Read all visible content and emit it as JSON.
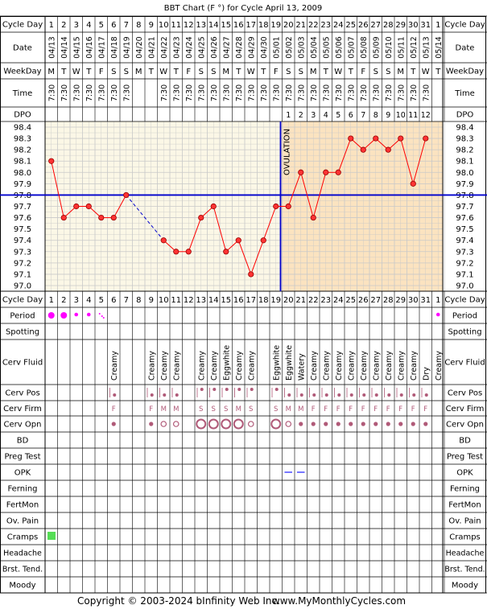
{
  "chart_data": {
    "type": "line",
    "title": "BBT Chart (F °) for Cycle April 13, 2009",
    "cycle_days": [
      1,
      2,
      3,
      4,
      5,
      6,
      7,
      8,
      9,
      10,
      11,
      12,
      13,
      14,
      15,
      16,
      17,
      18,
      19,
      20,
      21,
      22,
      23,
      24,
      25,
      26,
      27,
      28,
      29,
      30,
      31,
      1
    ],
    "dates": [
      "04/13",
      "04/14",
      "04/15",
      "04/16",
      "04/17",
      "04/18",
      "04/19",
      "04/20",
      "04/21",
      "04/22",
      "04/23",
      "04/24",
      "04/25",
      "04/26",
      "04/27",
      "04/28",
      "04/29",
      "04/30",
      "05/01",
      "05/02",
      "05/03",
      "05/04",
      "05/05",
      "05/06",
      "05/07",
      "05/08",
      "05/09",
      "05/10",
      "05/11",
      "05/12",
      "05/13",
      "05/14"
    ],
    "weekdays": [
      "M",
      "T",
      "W",
      "T",
      "F",
      "S",
      "S",
      "M",
      "T",
      "W",
      "T",
      "F",
      "S",
      "S",
      "M",
      "T",
      "W",
      "T",
      "F",
      "S",
      "S",
      "M",
      "T",
      "W",
      "T",
      "F",
      "S",
      "S",
      "M",
      "T",
      "W",
      "T"
    ],
    "times": [
      "7:30",
      "7:30",
      "7:30",
      "7:30",
      "7:30",
      "7:30",
      "7:30",
      "",
      "",
      "7:30",
      "7:30",
      "7:30",
      "7:30",
      "7:30",
      "7:30",
      "7:30",
      "7:30",
      "7:30",
      "7:30",
      "7:30",
      "7:30",
      "7:30",
      "7:30",
      "7:30",
      "7:30",
      "7:30",
      "7:30",
      "7:30",
      "7:30",
      "7:30",
      "7:30",
      ""
    ],
    "dpo": [
      "",
      "",
      "",
      "",
      "",
      "",
      "",
      "",
      "",
      "",
      "",
      "",
      "",
      "",
      "",
      "",
      "",
      "",
      "",
      "1",
      "2",
      "3",
      "4",
      "5",
      "6",
      "7",
      "8",
      "9",
      "10",
      "11",
      "12",
      ""
    ],
    "temperatures": [
      98.1,
      97.6,
      97.7,
      97.7,
      97.6,
      97.6,
      97.8,
      null,
      null,
      97.4,
      97.3,
      97.3,
      97.6,
      97.7,
      97.3,
      97.4,
      97.1,
      97.4,
      97.7,
      97.7,
      98.0,
      97.6,
      98.0,
      98.0,
      98.3,
      98.2,
      98.3,
      98.2,
      98.3,
      97.9,
      98.3,
      null
    ],
    "y_ticks": [
      "98.4",
      "98.3",
      "98.2",
      "98.1",
      "98.0",
      "97.9",
      "97.8",
      "97.7",
      "97.6",
      "97.5",
      "97.4",
      "97.3",
      "97.2",
      "97.1",
      "97.0"
    ],
    "ylim": [
      97.0,
      98.4
    ],
    "coverline": 97.8,
    "ovulation_day": 19,
    "ovulation_label": "OVULATION",
    "labels": {
      "cycle_day": "Cycle Day",
      "date": "Date",
      "weekday": "WeekDay",
      "time": "Time",
      "dpo": "DPO",
      "period": "Period",
      "spotting": "Spotting",
      "cerv_fluid": "Cerv Fluid",
      "cerv_pos": "Cerv Pos",
      "cerv_firm": "Cerv Firm",
      "cerv_opn": "Cerv Opn",
      "bd": "BD",
      "preg_test": "Preg Test",
      "opk": "OPK",
      "ferning": "Ferning",
      "fertmon": "FertMon",
      "ov_pain": "Ov. Pain",
      "cramps": "Cramps",
      "headache": "Headache",
      "brst_tend": "Brst. Tend.",
      "moody": "Moody"
    },
    "period": [
      "big",
      "big",
      "small",
      "small",
      "dots",
      "",
      "",
      "",
      "",
      "",
      "",
      "",
      "",
      "",
      "",
      "",
      "",
      "",
      "",
      "",
      "",
      "",
      "",
      "",
      "",
      "",
      "",
      "",
      "",
      "",
      "",
      "small"
    ],
    "cerv_fluid": [
      "",
      "",
      "",
      "",
      "",
      "Creamy",
      "",
      "",
      "Creamy",
      "Creamy",
      "Creamy",
      "",
      "Creamy",
      "Creamy",
      "Eggwhite",
      "Creamy",
      "Creamy",
      "",
      "Eggwhite",
      "Eggwhite",
      "Watery",
      "Creamy",
      "Creamy",
      "Creamy",
      "Creamy",
      "Creamy",
      "Creamy",
      "Creamy",
      "Creamy",
      "Creamy",
      "Dry",
      "Creamy"
    ],
    "cerv_pos": [
      "",
      "",
      "",
      "",
      "",
      "low",
      "",
      "",
      "low",
      "low",
      "low",
      "",
      "high",
      "high",
      "high",
      "high",
      "high",
      "",
      "high",
      "low",
      "low",
      "low",
      "low",
      "low",
      "low",
      "low",
      "low",
      "low",
      "low",
      "low",
      "low",
      ""
    ],
    "cerv_firm": [
      "",
      "",
      "",
      "",
      "",
      "F",
      "",
      "",
      "F",
      "M",
      "M",
      "",
      "S",
      "S",
      "S",
      "M",
      "S",
      "",
      "S",
      "M",
      "M",
      "F",
      "F",
      "F",
      "F",
      "F",
      "F",
      "F",
      "F",
      "F",
      "F",
      ""
    ],
    "cerv_opn": [
      "",
      "",
      "",
      "",
      "",
      "closed",
      "",
      "",
      "closed",
      "med",
      "med",
      "",
      "large",
      "large",
      "large",
      "large",
      "med",
      "",
      "large",
      "med",
      "closed",
      "closed",
      "closed",
      "closed",
      "closed",
      "closed",
      "closed",
      "closed",
      "closed",
      "closed",
      "closed",
      ""
    ],
    "opk": [
      "",
      "",
      "",
      "",
      "",
      "",
      "",
      "",
      "",
      "",
      "",
      "",
      "",
      "",
      "",
      "",
      "",
      "",
      "",
      "neg",
      "neg",
      "",
      "",
      "",
      "",
      "",
      "",
      "",
      "",
      "",
      "",
      ""
    ],
    "cramps": [
      "yes",
      "",
      "",
      "",
      "",
      "",
      "",
      "",
      "",
      "",
      "",
      "",
      "",
      "",
      "",
      "",
      "",
      "",
      "",
      "",
      "",
      "",
      "",
      "",
      "",
      "",
      "",
      "",
      "",
      "",
      "",
      ""
    ],
    "copyright": "Copyright © 2003-2024 bInfinity Web Inc.",
    "website": "www.MyMonthlyCycles.com",
    "colors": {
      "temperature_line": "#ff0000",
      "marker_fill": "#ff3333",
      "coverline": "#0000cc",
      "ovulation_line": "#0000cc",
      "pre_ovulation_bg": "#fbf7e6",
      "post_ovulation_bg": "#fbe3c0",
      "period_marker": "#ff00ff",
      "cervix_marker": "#b05a78",
      "opk_marker": "#5555ff",
      "cramps_marker": "#55dd55",
      "grid": "#c8c8c8"
    }
  }
}
